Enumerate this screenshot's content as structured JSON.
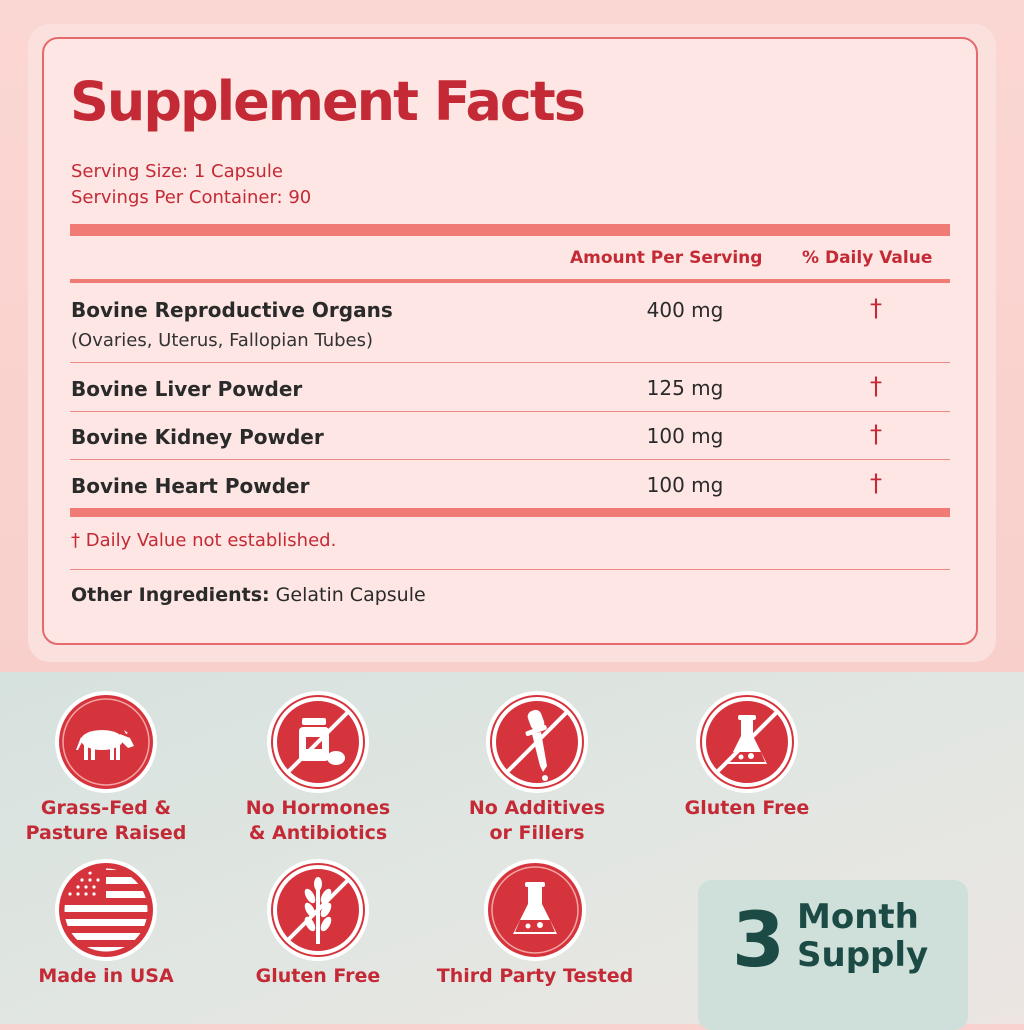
{
  "facts": {
    "title": "Supplement Facts",
    "serving_size": "Serving Size: 1 Capsule",
    "servings_per_container": "Servings Per Container: 90",
    "header_amount": "Amount Per Serving",
    "header_dv": "% Daily Value",
    "rows": [
      {
        "name": "Bovine Reproductive Organs",
        "sub": "(Ovaries, Uterus, Fallopian Tubes)",
        "amount": "400 mg",
        "dv": "†"
      },
      {
        "name": "Bovine Liver Powder",
        "amount": "125 mg",
        "dv": "†"
      },
      {
        "name": "Bovine Kidney Powder",
        "amount": "100 mg",
        "dv": "†"
      },
      {
        "name": "Bovine Heart Powder",
        "amount": "100 mg",
        "dv": "†"
      }
    ],
    "footnote": "† Daily Value not established.",
    "other_label": "Other Ingredients:",
    "other_value": "Gelatin Capsule"
  },
  "badges": [
    {
      "icon": "cow-icon",
      "line1": "Grass-Fed &",
      "line2": "Pasture Raised"
    },
    {
      "icon": "no-pills-icon",
      "line1": "No Hormones",
      "line2": "& Antibiotics"
    },
    {
      "icon": "no-dropper-icon",
      "line1": "No Additives",
      "line2": "or Fillers"
    },
    {
      "icon": "no-flask-icon",
      "line1": "Gluten Free",
      "line2": ""
    },
    {
      "icon": "usa-flag-icon",
      "line1": "Made in USA",
      "line2": ""
    },
    {
      "icon": "no-wheat-icon",
      "line1": "Gluten Free",
      "line2": ""
    },
    {
      "icon": "flask-icon",
      "line1": "Third Party Tested",
      "line2": ""
    }
  ],
  "supply": {
    "number": "3",
    "line1": "Month",
    "line2": "Supply"
  },
  "colors": {
    "accent_red": "#c42a36",
    "rule_red": "#f07a74",
    "dark_green": "#1c4a44"
  }
}
